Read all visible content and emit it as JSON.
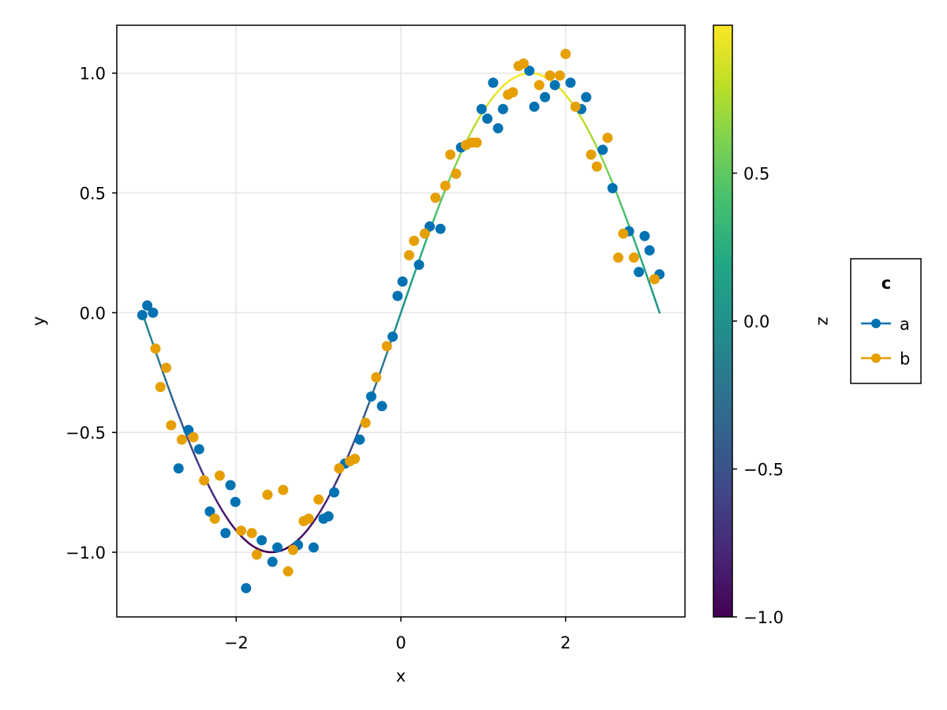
{
  "chart_data": {
    "type": "scatter",
    "title": "",
    "xlabel": "x",
    "ylabel": "y",
    "xlim": [
      -3.45,
      3.45
    ],
    "ylim": [
      -1.27,
      1.2
    ],
    "x_ticks": [
      -2,
      0,
      2
    ],
    "x_tick_labels": [
      "−2",
      "0",
      "2"
    ],
    "y_ticks": [
      -1.0,
      -0.5,
      0.0,
      0.5,
      1.0
    ],
    "y_tick_labels": [
      "−1.0",
      "−0.5",
      "0.0",
      "0.5",
      "1.0"
    ],
    "grid": true,
    "line": {
      "function": "sin(x)",
      "x_range": [
        -3.14159,
        3.14159
      ],
      "color_by": "z",
      "colormap": "viridis"
    },
    "colorbar": {
      "label": "z",
      "range": [
        -1.0,
        1.0
      ],
      "ticks": [
        -1.0,
        -0.5,
        0.0,
        0.5
      ],
      "tick_labels": [
        "−1.0",
        "−0.5",
        "0.0",
        "0.5"
      ],
      "colormap": "viridis"
    },
    "legend": {
      "title": "c",
      "placement": "right",
      "entries": [
        {
          "label": "a",
          "color": "#0072b2"
        },
        {
          "label": "b",
          "color": "#e69f00"
        }
      ]
    },
    "series": [
      {
        "name": "a",
        "color": "#0072b2",
        "x": [
          -3.14,
          -3.08,
          -3.01,
          -2.7,
          -2.58,
          -2.45,
          -2.32,
          -2.13,
          -2.07,
          -2.01,
          -1.88,
          -1.69,
          -1.56,
          -1.5,
          -1.25,
          -1.06,
          -0.94,
          -0.88,
          -0.81,
          -0.68,
          -0.5,
          -0.36,
          -0.23,
          -0.1,
          -0.04,
          0.02,
          0.22,
          0.35,
          0.48,
          0.73,
          0.98,
          1.05,
          1.12,
          1.18,
          1.24,
          1.56,
          1.62,
          1.75,
          1.87,
          2.06,
          2.19,
          2.25,
          2.45,
          2.57,
          2.77,
          2.89,
          2.96,
          3.02,
          3.14
        ],
        "y": [
          -0.01,
          0.03,
          0.0,
          -0.65,
          -0.49,
          -0.57,
          -0.83,
          -0.92,
          -0.72,
          -0.79,
          -1.15,
          -0.95,
          -1.04,
          -0.98,
          -0.97,
          -0.98,
          -0.86,
          -0.85,
          -0.75,
          -0.63,
          -0.53,
          -0.35,
          -0.39,
          -0.1,
          0.07,
          0.13,
          0.2,
          0.36,
          0.35,
          0.69,
          0.85,
          0.81,
          0.96,
          0.77,
          0.85,
          1.01,
          0.86,
          0.9,
          0.95,
          0.96,
          0.85,
          0.9,
          0.68,
          0.52,
          0.34,
          0.17,
          0.32,
          0.26,
          0.16
        ]
      },
      {
        "name": "b",
        "color": "#e69f00",
        "x": [
          -2.98,
          -2.92,
          -2.85,
          -2.79,
          -2.66,
          -2.52,
          -2.39,
          -2.26,
          -2.2,
          -1.94,
          -1.81,
          -1.75,
          -1.62,
          -1.43,
          -1.37,
          -1.31,
          -1.18,
          -1.12,
          -1.0,
          -0.75,
          -0.62,
          -0.56,
          -0.43,
          -0.3,
          -0.17,
          0.1,
          0.16,
          0.29,
          0.42,
          0.54,
          0.6,
          0.67,
          0.79,
          0.86,
          0.92,
          1.3,
          1.36,
          1.43,
          1.49,
          1.68,
          1.81,
          1.93,
          2.0,
          2.12,
          2.31,
          2.38,
          2.51,
          2.64,
          2.7,
          2.83,
          3.08
        ],
        "y": [
          -0.15,
          -0.31,
          -0.23,
          -0.47,
          -0.53,
          -0.52,
          -0.7,
          -0.86,
          -0.68,
          -0.91,
          -0.92,
          -1.01,
          -0.76,
          -0.74,
          -1.08,
          -0.99,
          -0.87,
          -0.86,
          -0.78,
          -0.65,
          -0.62,
          -0.61,
          -0.46,
          -0.27,
          -0.14,
          0.24,
          0.3,
          0.33,
          0.48,
          0.53,
          0.66,
          0.58,
          0.7,
          0.71,
          0.71,
          0.91,
          0.92,
          1.03,
          1.04,
          0.95,
          0.99,
          0.99,
          1.08,
          0.86,
          0.66,
          0.61,
          0.73,
          0.23,
          0.33,
          0.23,
          0.14
        ]
      }
    ]
  }
}
